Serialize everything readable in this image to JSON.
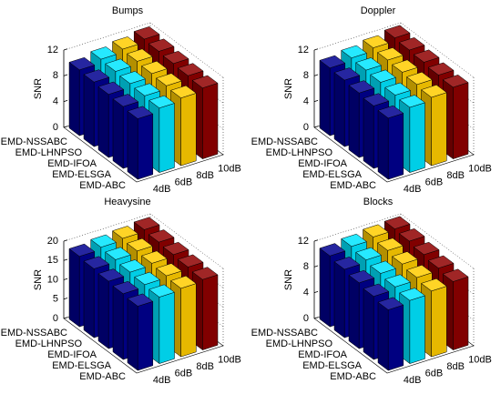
{
  "chart_data": [
    {
      "type": "bar3",
      "title": "Bumps",
      "ylabel": "SNR",
      "categories": [
        "EMD-NSSABC",
        "EMD-LHNPSO",
        "EMD-IFOA",
        "EMD-ELSGA",
        "EMD-ABC"
      ],
      "series": [
        {
          "name": "4dB",
          "color": "#00008f",
          "values": [
            10.2,
            10.0,
            9.8,
            9.6,
            9.4
          ]
        },
        {
          "name": "6dB",
          "color": "#00e5ff",
          "values": [
            10.8,
            10.6,
            10.4,
            10.2,
            10.0
          ]
        },
        {
          "name": "8dB",
          "color": "#ffcc00",
          "values": [
            11.3,
            11.1,
            10.9,
            10.7,
            10.5
          ]
        },
        {
          "name": "10dB",
          "color": "#8f0000",
          "values": [
            11.8,
            11.6,
            11.4,
            11.2,
            11.0
          ]
        }
      ],
      "ylim": [
        0,
        12
      ],
      "yticks": [
        0,
        4,
        8,
        12
      ],
      "grid": true
    },
    {
      "type": "bar3",
      "title": "Doppler",
      "ylabel": "SNR",
      "categories": [
        "EMD-NSSABC",
        "EMD-LHNPSO",
        "EMD-IFOA",
        "EMD-ELSGA",
        "EMD-ABC"
      ],
      "series": [
        {
          "name": "4dB",
          "color": "#00008f",
          "values": [
            10.5,
            10.3,
            10.0,
            9.7,
            9.5
          ]
        },
        {
          "name": "6dB",
          "color": "#00e5ff",
          "values": [
            11.0,
            10.8,
            10.6,
            10.3,
            10.1
          ]
        },
        {
          "name": "8dB",
          "color": "#ffcc00",
          "values": [
            11.5,
            11.3,
            11.1,
            10.9,
            10.6
          ]
        },
        {
          "name": "10dB",
          "color": "#8f0000",
          "values": [
            12.0,
            11.8,
            11.6,
            11.3,
            11.1
          ]
        }
      ],
      "ylim": [
        0,
        12
      ],
      "yticks": [
        0,
        4,
        8,
        12
      ],
      "grid": true
    },
    {
      "type": "bar3",
      "title": "Heavysine",
      "ylabel": "SNR",
      "categories": [
        "EMD-NSSABC",
        "EMD-LHNPSO",
        "EMD-IFOA",
        "EMD-ELSGA",
        "EMD-ABC"
      ],
      "series": [
        {
          "name": "4dB",
          "color": "#00008f",
          "values": [
            18.2,
            17.8,
            17.4,
            17.0,
            16.6
          ]
        },
        {
          "name": "6dB",
          "color": "#00e5ff",
          "values": [
            18.8,
            18.4,
            18.0,
            17.6,
            17.2
          ]
        },
        {
          "name": "8dB",
          "color": "#ffcc00",
          "values": [
            19.3,
            18.9,
            18.5,
            18.1,
            17.7
          ]
        },
        {
          "name": "10dB",
          "color": "#8f0000",
          "values": [
            19.8,
            19.4,
            19.0,
            18.6,
            18.2
          ]
        }
      ],
      "ylim": [
        0,
        20
      ],
      "yticks": [
        0,
        5,
        10,
        15,
        20
      ],
      "grid": true
    },
    {
      "type": "bar3",
      "title": "Blocks",
      "ylabel": "SNR",
      "categories": [
        "EMD-NSSABC",
        "EMD-LHNPSO",
        "EMD-IFOA",
        "EMD-ELSGA",
        "EMD-ABC"
      ],
      "series": [
        {
          "name": "4dB",
          "color": "#00008f",
          "values": [
            11.0,
            10.6,
            10.2,
            9.8,
            9.4
          ]
        },
        {
          "name": "6dB",
          "color": "#00e5ff",
          "values": [
            11.4,
            11.0,
            10.6,
            10.2,
            9.8
          ]
        },
        {
          "name": "8dB",
          "color": "#ffcc00",
          "values": [
            11.8,
            11.4,
            11.0,
            10.6,
            10.2
          ]
        },
        {
          "name": "10dB",
          "color": "#8f0000",
          "values": [
            12.0,
            11.8,
            11.4,
            11.0,
            10.6
          ]
        }
      ],
      "ylim": [
        0,
        12
      ],
      "yticks": [
        0,
        4,
        8,
        12
      ],
      "grid": true
    }
  ]
}
